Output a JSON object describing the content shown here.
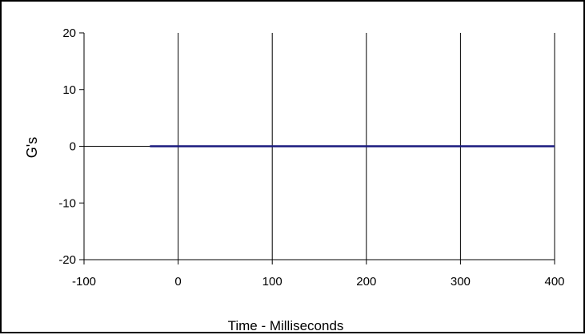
{
  "chart_data": {
    "type": "line",
    "title": "",
    "xlabel": "Time - Milliseconds",
    "ylabel": "G's",
    "xlim": [
      -100,
      400
    ],
    "ylim": [
      -20,
      20
    ],
    "x_ticks": [
      -100,
      0,
      100,
      200,
      300,
      400
    ],
    "y_ticks": [
      20,
      10,
      0,
      -10,
      -20
    ],
    "x_tick_labels": [
      "-100",
      "0",
      "100",
      "200",
      "300",
      "400"
    ],
    "y_tick_labels": [
      "20",
      "10",
      "0",
      "-10",
      "-20"
    ],
    "grid": "vertical",
    "legend": "none",
    "series": [
      {
        "color": "#1a1a7e",
        "x": [
          -30,
          400
        ],
        "y": [
          0,
          0
        ]
      }
    ]
  }
}
